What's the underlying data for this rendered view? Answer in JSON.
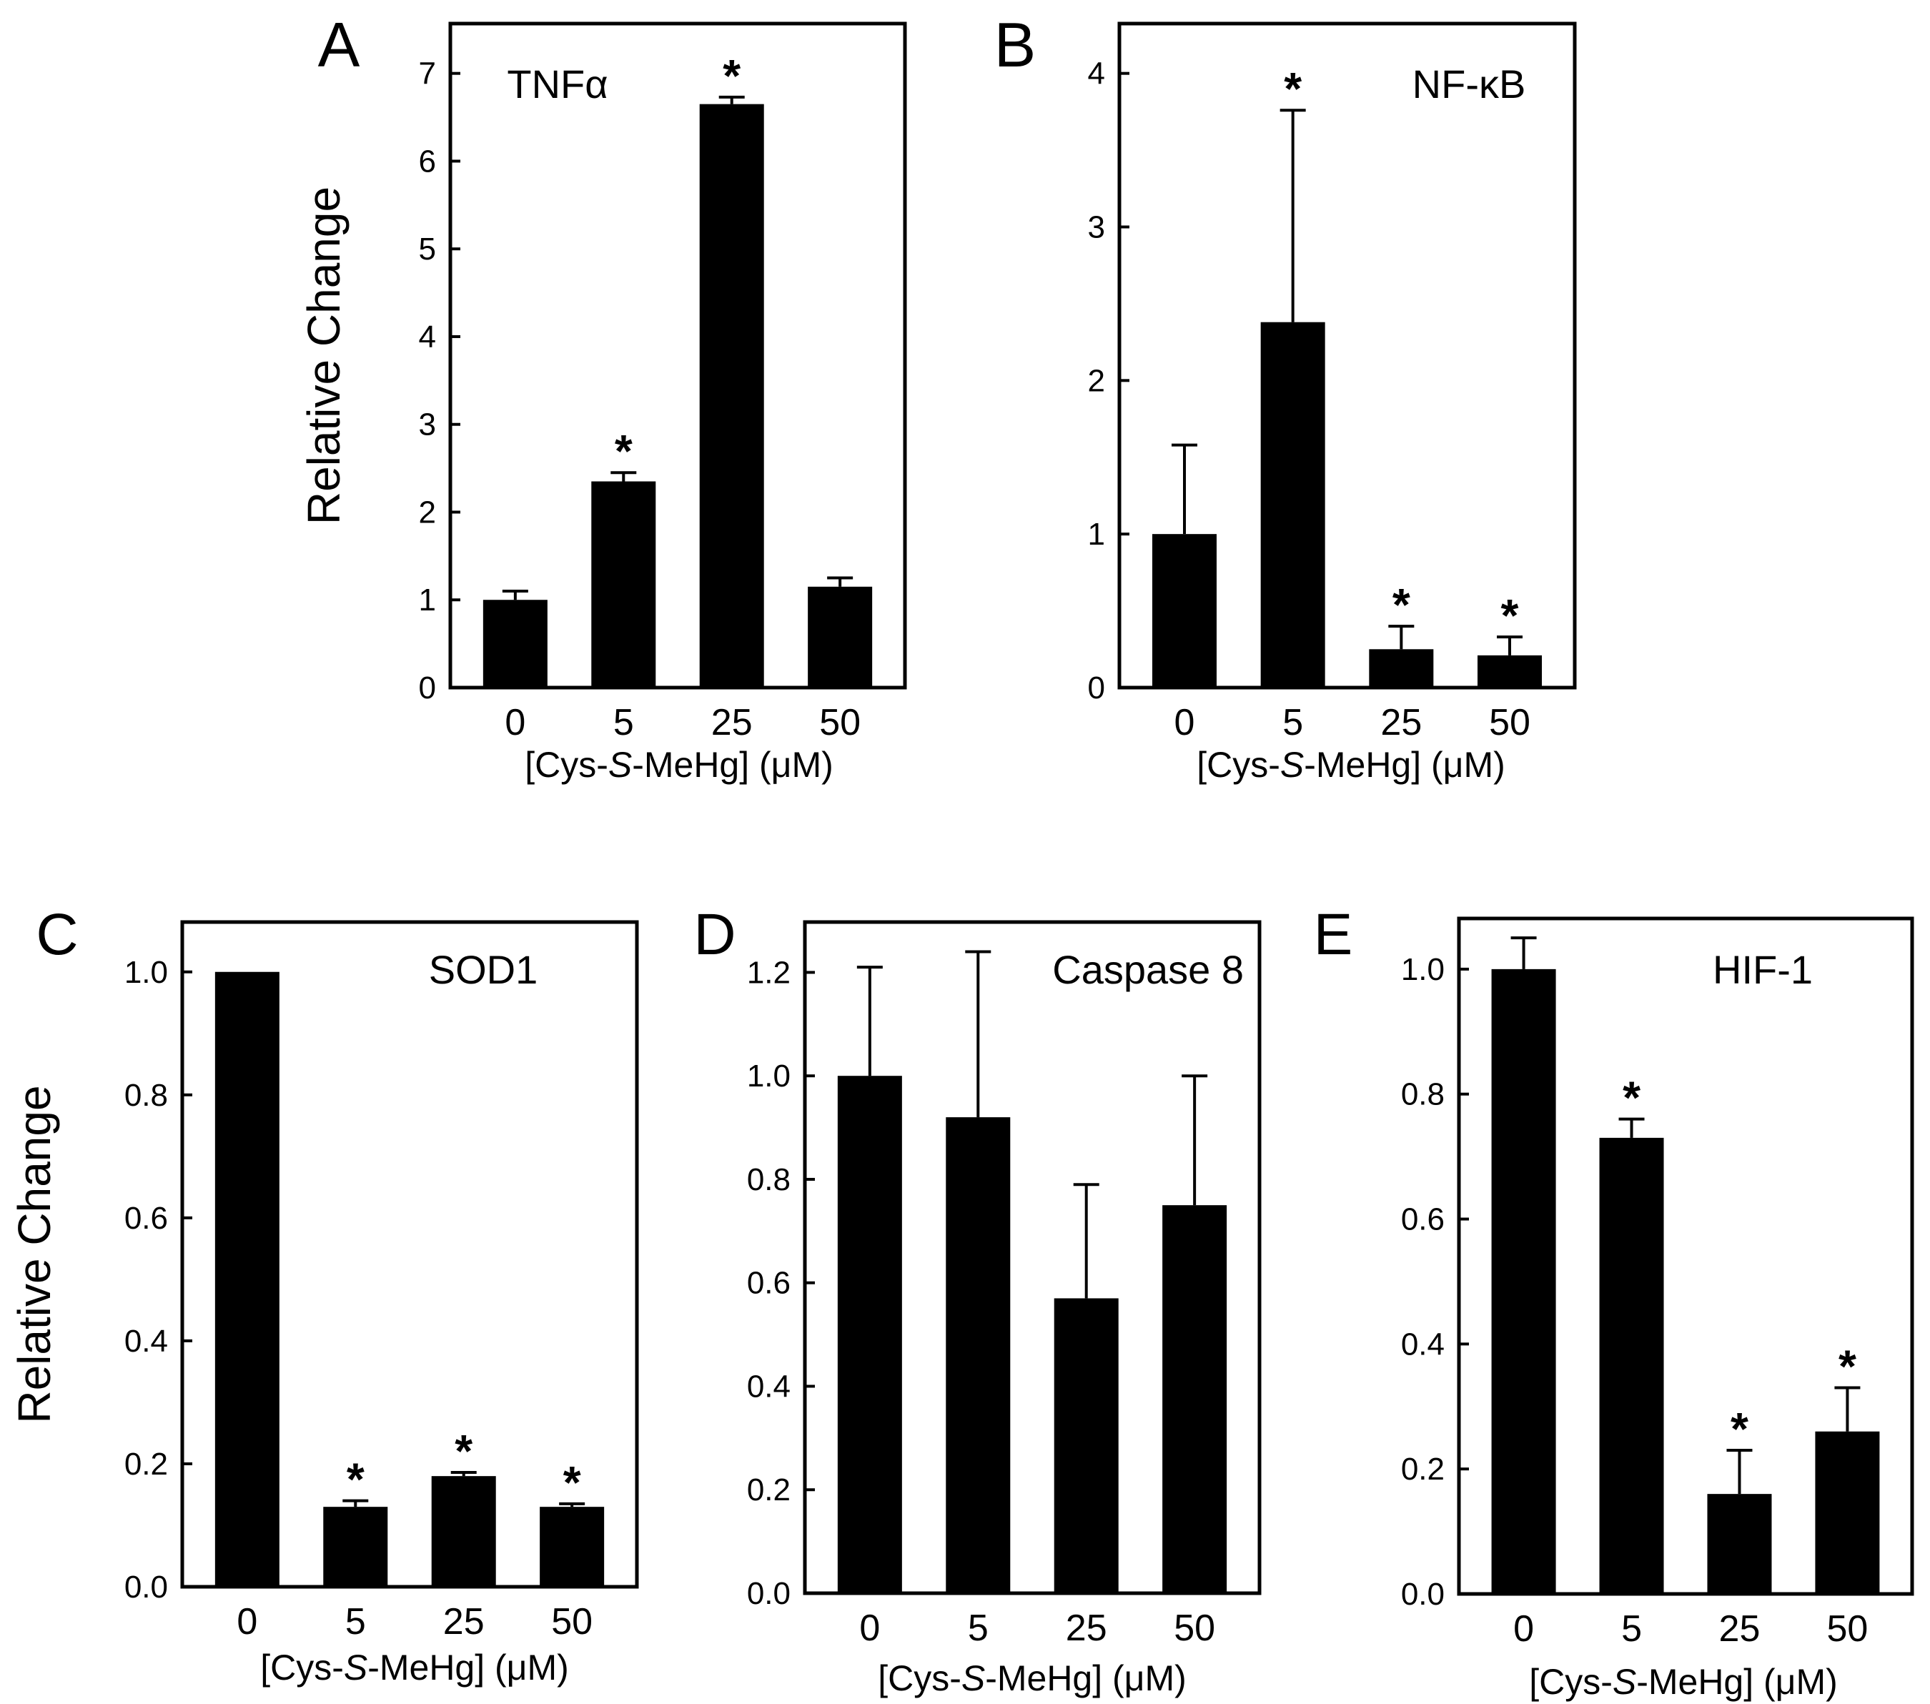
{
  "figure": {
    "x_axis_label_prefix": "[Cys-",
    "x_axis_label_italic": "S",
    "x_axis_label_suffix": "-MeHg] (μM)",
    "y_axis_label": "Relative Change"
  },
  "chart_data": [
    {
      "panel_letter": "A",
      "type": "bar",
      "inset_label": "TNFα",
      "categories": [
        "0",
        "5",
        "25",
        "50"
      ],
      "values": [
        1.0,
        2.35,
        6.65,
        1.15
      ],
      "errors": [
        0.1,
        0.1,
        0.08,
        0.1
      ],
      "significant": [
        false,
        true,
        true,
        false
      ],
      "ylim": [
        0,
        7
      ],
      "yticks": [
        "0",
        "1",
        "2",
        "3",
        "4",
        "5",
        "6",
        "7"
      ],
      "ylabel": "Relative Change",
      "xlabel": "[Cys-S-MeHg] (μM)"
    },
    {
      "panel_letter": "B",
      "type": "bar",
      "inset_label": "NF-κB",
      "categories": [
        "0",
        "5",
        "25",
        "50"
      ],
      "values": [
        1.0,
        2.38,
        0.25,
        0.21
      ],
      "errors": [
        0.58,
        1.38,
        0.15,
        0.12
      ],
      "significant": [
        false,
        true,
        true,
        true
      ],
      "ylim": [
        0,
        4
      ],
      "yticks": [
        "0",
        "1",
        "2",
        "3",
        "4"
      ],
      "ylabel": "",
      "xlabel": "[Cys-S-MeHg] (μM)"
    },
    {
      "panel_letter": "C",
      "type": "bar",
      "inset_label": "SOD1",
      "categories": [
        "0",
        "5",
        "25",
        "50"
      ],
      "values": [
        1.0,
        0.13,
        0.18,
        0.13
      ],
      "errors": [
        0.0,
        0.01,
        0.006,
        0.005
      ],
      "significant": [
        false,
        true,
        true,
        true
      ],
      "ylim": [
        0,
        1.0
      ],
      "yticks": [
        "0.0",
        "0.2",
        "0.4",
        "0.6",
        "0.8",
        "1.0"
      ],
      "ylabel": "Relative Change",
      "xlabel": "[Cys-S-MeHg] (μM)"
    },
    {
      "panel_letter": "D",
      "type": "bar",
      "inset_label": "Caspase 8",
      "categories": [
        "0",
        "5",
        "25",
        "50"
      ],
      "values": [
        1.0,
        0.92,
        0.57,
        0.75
      ],
      "errors": [
        0.21,
        0.32,
        0.22,
        0.25
      ],
      "significant": [
        false,
        false,
        false,
        false
      ],
      "ylim": [
        0,
        1.2
      ],
      "yticks": [
        "0.0",
        "0.2",
        "0.4",
        "0.6",
        "0.8",
        "1.0",
        "1.2"
      ],
      "ylabel": "",
      "xlabel": "[Cys-S-MeHg] (μM)"
    },
    {
      "panel_letter": "E",
      "type": "bar",
      "inset_label": "HIF-1",
      "categories": [
        "0",
        "5",
        "25",
        "50"
      ],
      "values": [
        1.0,
        0.73,
        0.16,
        0.26
      ],
      "errors": [
        0.05,
        0.03,
        0.07,
        0.07
      ],
      "significant": [
        false,
        true,
        true,
        true
      ],
      "ylim": [
        0,
        1.0
      ],
      "yticks": [
        "0.0",
        "0.2",
        "0.4",
        "0.6",
        "0.8",
        "1.0"
      ],
      "ylabel": "",
      "xlabel": "[Cys-S-MeHg] (μM)"
    }
  ]
}
